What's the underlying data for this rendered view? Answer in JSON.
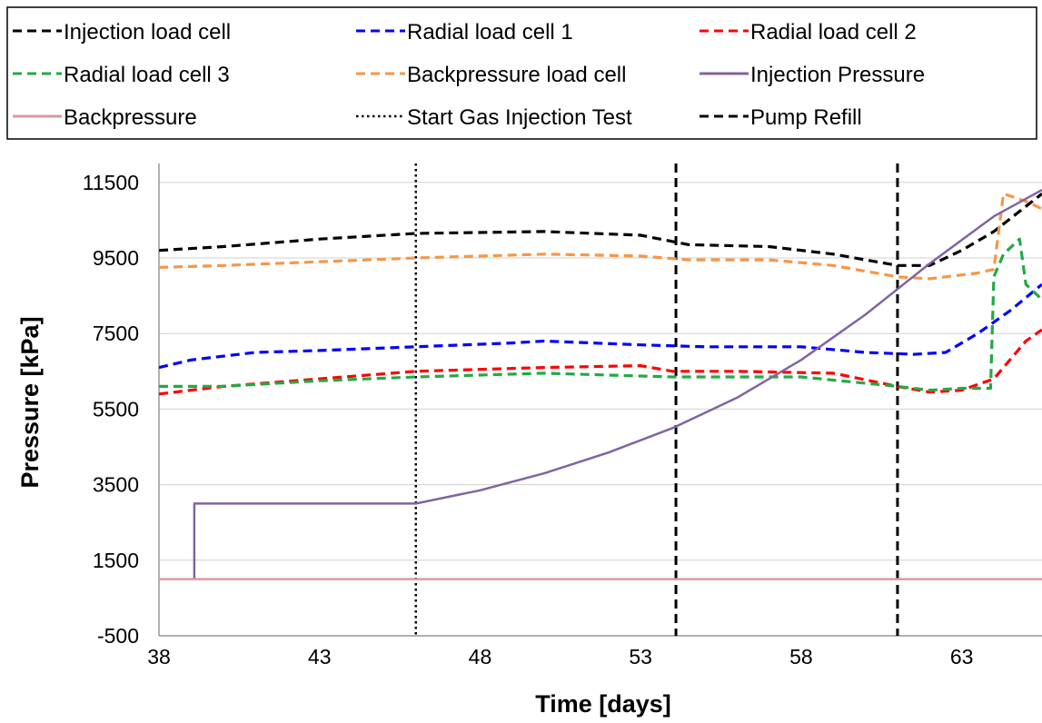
{
  "chart_data": {
    "type": "line",
    "xlabel": "Time [days]",
    "ylabel": "Pressure [kPa]",
    "xlim": [
      38,
      65.5
    ],
    "ylim": [
      -500,
      12000
    ],
    "x_ticks": [
      38,
      43,
      48,
      53,
      58,
      63
    ],
    "x_tick_labels": [
      "38",
      "43",
      "48",
      "53",
      "58",
      "63"
    ],
    "y_ticks": [
      -500,
      1500,
      3500,
      5500,
      7500,
      9500,
      11500
    ],
    "y_tick_labels": [
      "-500",
      "1500",
      "3500",
      "5500",
      "7500",
      "9500",
      "11500"
    ],
    "grid": "horizontal",
    "legend_position": "top",
    "series": [
      {
        "name": "Injection load cell",
        "color": "#000000",
        "style": "dashed",
        "x": [
          38,
          40,
          43,
          46,
          50,
          53,
          54.5,
          57,
          59,
          61,
          62,
          63,
          64,
          65.5
        ],
        "y": [
          9700,
          9800,
          10000,
          10150,
          10200,
          10100,
          9850,
          9800,
          9600,
          9300,
          9300,
          9700,
          10200,
          11200
        ]
      },
      {
        "name": "Radial load cell 1",
        "color": "#0000ff",
        "style": "dashed",
        "x": [
          38,
          39,
          41,
          43,
          46,
          49,
          50,
          53,
          55,
          58,
          60,
          61.5,
          62.5,
          63.5,
          64.5,
          65.5
        ],
        "y": [
          6600,
          6800,
          7000,
          7050,
          7150,
          7250,
          7300,
          7200,
          7150,
          7150,
          7000,
          6950,
          7000,
          7500,
          8100,
          8800
        ]
      },
      {
        "name": "Radial load cell 2",
        "color": "#ff0000",
        "style": "dashed",
        "x": [
          38,
          40,
          43,
          46,
          50,
          53,
          54,
          56,
          59,
          61,
          62,
          63,
          64,
          65,
          65.5
        ],
        "y": [
          5900,
          6100,
          6300,
          6500,
          6600,
          6650,
          6500,
          6500,
          6450,
          6100,
          5950,
          6000,
          6300,
          7300,
          7600
        ]
      },
      {
        "name": "Radial load cell 3",
        "color": "#22aa44",
        "style": "dashed",
        "x": [
          38,
          40,
          43,
          46,
          50,
          54,
          58,
          61,
          62,
          63,
          63.9,
          64,
          64.3,
          64.8,
          65,
          65.5
        ],
        "y": [
          6100,
          6100,
          6250,
          6350,
          6450,
          6350,
          6350,
          6100,
          6000,
          6050,
          6050,
          9000,
          9600,
          10000,
          8800,
          8400
        ]
      },
      {
        "name": "Backpressure load cell",
        "color": "#f79646",
        "style": "dashed",
        "x": [
          38,
          40,
          43,
          46,
          50,
          53,
          54.5,
          57,
          59,
          61,
          62,
          63.5,
          64,
          64.3,
          65,
          65.5
        ],
        "y": [
          9250,
          9300,
          9400,
          9500,
          9600,
          9550,
          9450,
          9450,
          9300,
          9000,
          8950,
          9100,
          9200,
          11200,
          11000,
          10800
        ]
      },
      {
        "name": "Injection Pressure",
        "color": "#8064a2",
        "style": "solid",
        "x": [
          39.1,
          39.1,
          46,
          48,
          50,
          52,
          54,
          56,
          58,
          60,
          62,
          64,
          65.5
        ],
        "y": [
          1000,
          3000,
          3000,
          3350,
          3800,
          4350,
          5000,
          5800,
          6800,
          8000,
          9350,
          10600,
          11300
        ]
      },
      {
        "name": "Backpressure",
        "color": "#d89ba0",
        "style": "solid",
        "x": [
          38,
          65.5
        ],
        "y": [
          1000,
          1000
        ]
      }
    ],
    "vertical_lines": [
      {
        "name": "Start Gas Injection Test",
        "x": 46,
        "color": "#000000",
        "style": "dotted"
      },
      {
        "name": "Pump Refill",
        "x": 54.1,
        "color": "#000000",
        "style": "dashed"
      },
      {
        "name": "Pump Refill",
        "x": 61,
        "color": "#000000",
        "style": "dashed"
      }
    ],
    "legend": [
      {
        "label": "Injection load cell",
        "color": "#000000",
        "style": "dashed"
      },
      {
        "label": "Radial load cell 1",
        "color": "#0000ff",
        "style": "dashed"
      },
      {
        "label": "Radial load cell 2",
        "color": "#ff0000",
        "style": "dashed"
      },
      {
        "label": "Radial load cell 3",
        "color": "#22aa44",
        "style": "dashed"
      },
      {
        "label": "Backpressure load cell",
        "color": "#f79646",
        "style": "dashed"
      },
      {
        "label": "Injection Pressure",
        "color": "#8064a2",
        "style": "solid"
      },
      {
        "label": "Backpressure",
        "color": "#d89ba0",
        "style": "solid"
      },
      {
        "label": "Start Gas Injection Test",
        "color": "#000000",
        "style": "dotted"
      },
      {
        "label": "Pump Refill",
        "color": "#000000",
        "style": "dashed"
      }
    ]
  }
}
